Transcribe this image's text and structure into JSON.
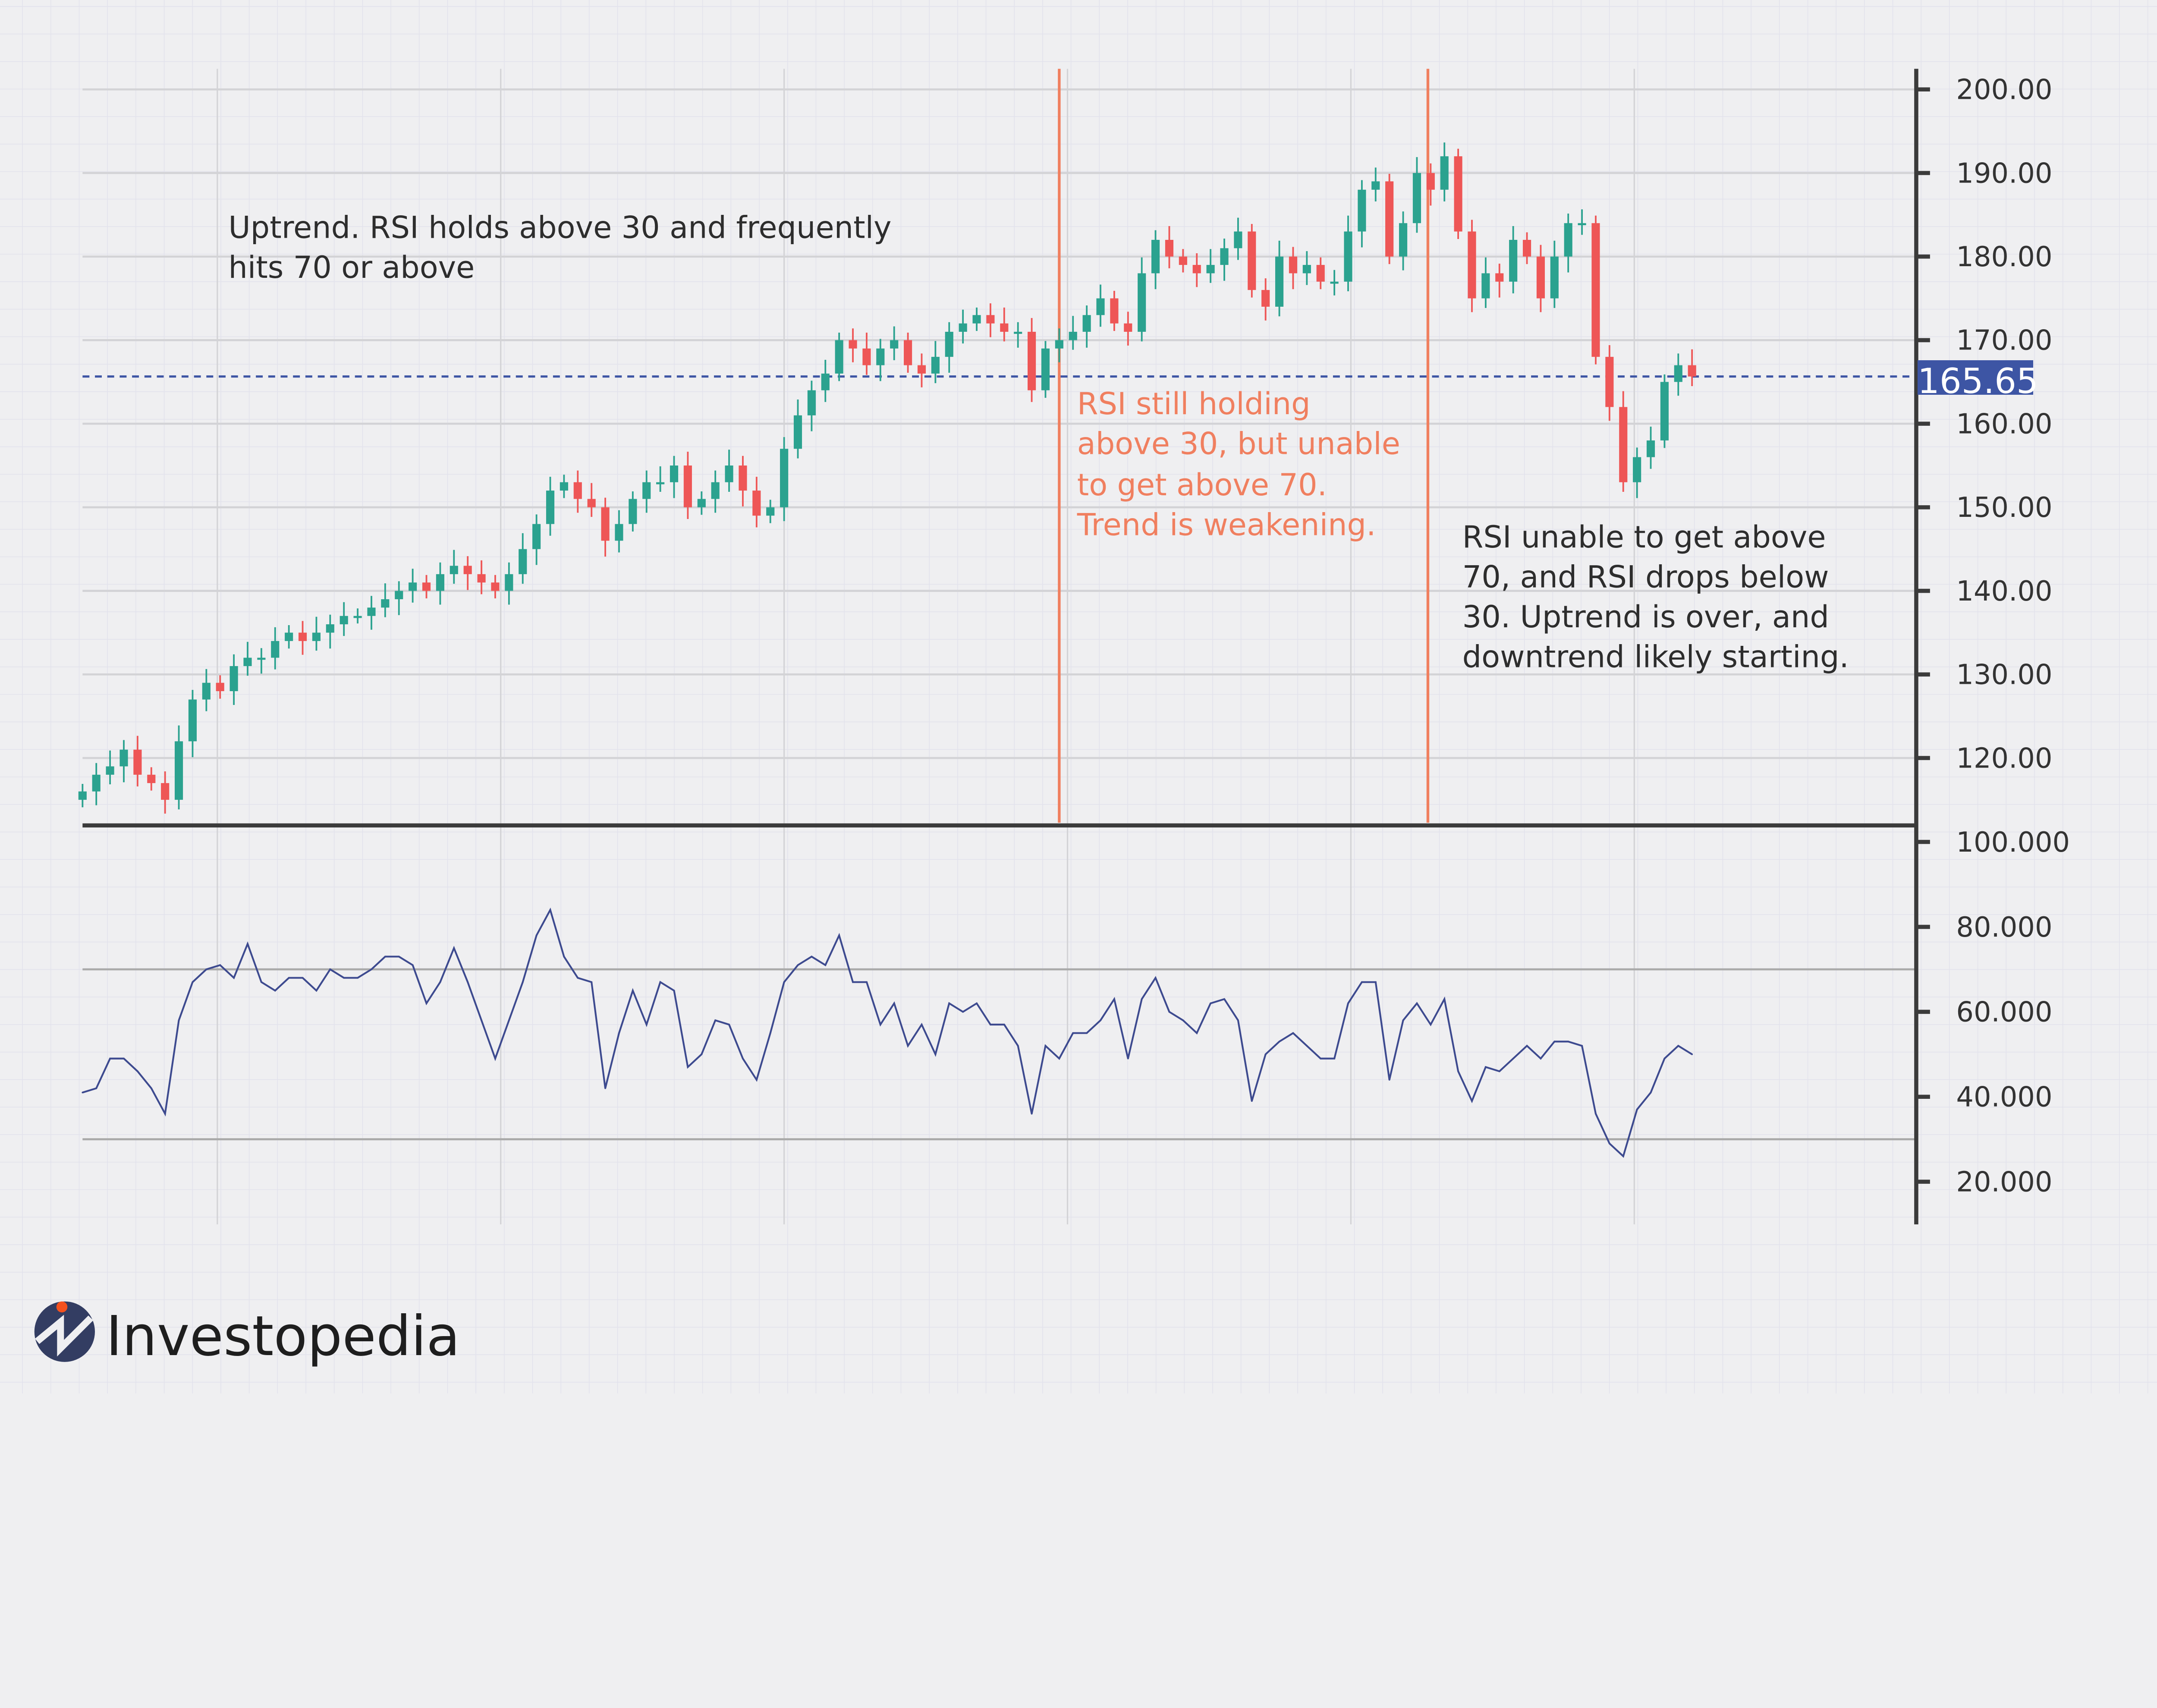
{
  "chart_data": [
    {
      "type": "candlestick",
      "panel": "price",
      "y_ticks": [
        "200.00",
        "190.00",
        "180.00",
        "170.00",
        "160.00",
        "150.00",
        "140.00",
        "130.00",
        "120.00"
      ],
      "ylim": [
        110,
        202
      ],
      "grid": true,
      "colors": {
        "up": "#2ba28f",
        "down": "#ee5656"
      },
      "current_price": {
        "value": 165.65,
        "label": "165.65",
        "color": "#3d55a4"
      },
      "closes": [
        116,
        118,
        119,
        121,
        118,
        117,
        115,
        122,
        127,
        129,
        128,
        131,
        132,
        132,
        134,
        135,
        134,
        135,
        136,
        137,
        137,
        138,
        139,
        140,
        141,
        140,
        142,
        143,
        142,
        141,
        140,
        142,
        145,
        148,
        152,
        153,
        151,
        150,
        146,
        148,
        151,
        153,
        153,
        155,
        150,
        151,
        153,
        155,
        152,
        149,
        150,
        157,
        161,
        164,
        166,
        170,
        169,
        167,
        169,
        170,
        167,
        166,
        168,
        171,
        172,
        173,
        172,
        171,
        171,
        164,
        169,
        170,
        171,
        173,
        175,
        172,
        171,
        178,
        182,
        180,
        179,
        178,
        179,
        181,
        183,
        176,
        174,
        180,
        178,
        179,
        177,
        177,
        183,
        188,
        189,
        180,
        184,
        190,
        188,
        192,
        183,
        175,
        178,
        177,
        182,
        180,
        175,
        180,
        184,
        184,
        168,
        162,
        153,
        156,
        158,
        165,
        167,
        165.65
      ],
      "annotations": [
        {
          "lines": [
            "Uptrend. RSI holds above 30 and frequently",
            "hits 70 or above"
          ],
          "color": "#2d2d2d"
        },
        {
          "lines": [
            "RSI still holding",
            "above 30, but unable",
            "to get above 70.",
            "Trend is weakening."
          ],
          "color": "#f07f5f"
        },
        {
          "lines": [
            "RSI unable to get above",
            "70, and RSI drops below",
            "30.  Uptrend is over, and",
            "downtrend likely starting."
          ],
          "color": "#2d2d2d"
        }
      ],
      "marker_lines_color": "#f07f5f"
    },
    {
      "type": "line",
      "panel": "rsi",
      "y_ticks": [
        "100.000",
        "80.000",
        "60.000",
        "40.000",
        "20.000"
      ],
      "ylim": [
        15,
        100
      ],
      "reference_lines": [
        70,
        30
      ],
      "color": "#3d4a8f",
      "values": [
        41,
        42,
        49,
        49,
        46,
        42,
        36,
        58,
        67,
        70,
        71,
        68,
        76,
        67,
        65,
        68,
        68,
        65,
        70,
        68,
        68,
        70,
        73,
        73,
        71,
        62,
        67,
        75,
        67,
        58,
        49,
        58,
        67,
        78,
        84,
        73,
        68,
        67,
        42,
        55,
        65,
        57,
        67,
        65,
        47,
        50,
        58,
        57,
        49,
        44,
        55,
        67,
        71,
        73,
        71,
        78,
        67,
        67,
        57,
        62,
        52,
        57,
        50,
        62,
        60,
        62,
        57,
        57,
        52,
        36,
        52,
        49,
        55,
        55,
        58,
        63,
        49,
        63,
        68,
        60,
        58,
        55,
        62,
        63,
        58,
        39,
        50,
        53,
        55,
        52,
        49,
        49,
        62,
        67,
        67,
        44,
        58,
        62,
        57,
        63,
        46,
        39,
        47,
        46,
        49,
        52,
        49,
        53,
        53,
        52,
        36,
        29,
        26,
        37,
        41,
        49,
        52,
        50
      ]
    }
  ],
  "logo": {
    "text": "Investopedia",
    "circle_color": "#333d62",
    "dot_color": "#f4511e"
  }
}
